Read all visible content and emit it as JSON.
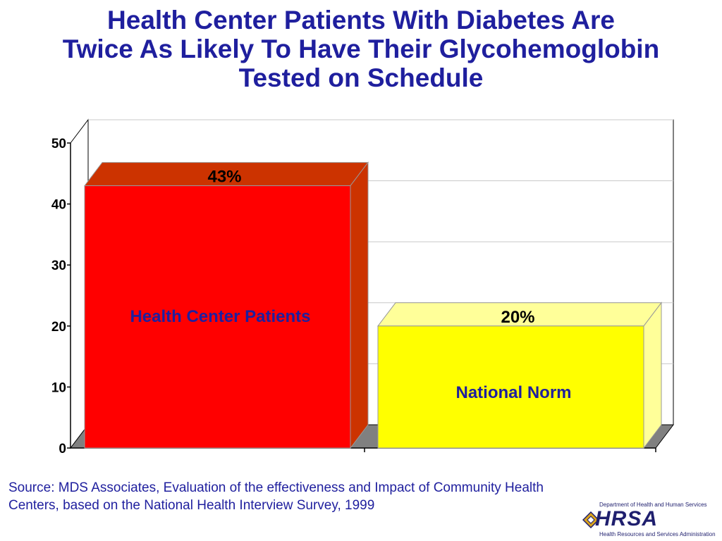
{
  "title": {
    "line1": "Health Center Patients With Diabetes Are",
    "line2": "Twice As Likely To Have Their Glycohemoglobin",
    "line3": "Tested on Schedule"
  },
  "chart_data": {
    "type": "bar",
    "categories": [
      "Health Center Patients",
      "National Norm"
    ],
    "values": [
      43,
      20
    ],
    "data_labels": [
      "43%",
      "20%"
    ],
    "ylim": [
      0,
      50
    ],
    "yticks": [
      0,
      10,
      20,
      30,
      40,
      50
    ],
    "ytick_labels": [
      "0",
      "10",
      "20",
      "30",
      "40",
      "50"
    ],
    "grid": true,
    "style": "3d",
    "colors": {
      "bar1_front": "#ff0000",
      "bar1_top": "#cc3300",
      "bar1_side": "#cc3300",
      "bar2_front": "#ffff00",
      "bar2_top": "#ffff99",
      "bar2_side": "#ffff99",
      "label_text": "#1f1f9e",
      "floor": "#808080"
    }
  },
  "source": {
    "text": "Source:  MDS Associates, Evaluation of the effectiveness and Impact of Community Health Centers, based on the National Health Interview Survey, 1999"
  },
  "logo": {
    "top_text": "Department of Health and Human Services",
    "wordmark": "HRSA",
    "bottom_text": "Health Resources and Services Administration"
  }
}
